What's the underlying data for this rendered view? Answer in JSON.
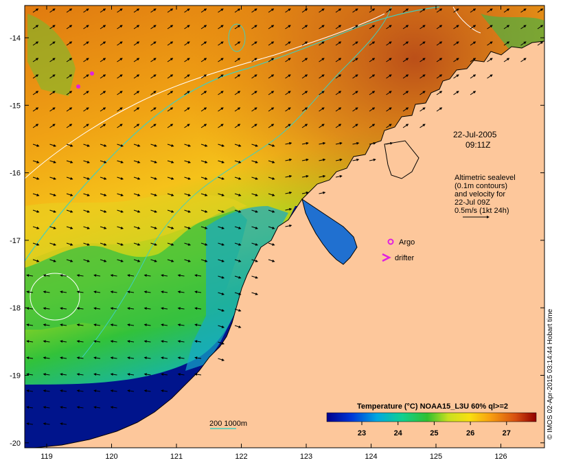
{
  "date": "22-Jul-2005",
  "time": "09:11Z",
  "altimetry_lines": [
    "Altimetric sealevel",
    "(0.1m contours)",
    "and velocity for",
    "22-Jul 09Z",
    "0.5m/s (1kt 24h)"
  ],
  "legend": {
    "argo": "Argo",
    "drifter": "drifter",
    "bathy": "200  1000m"
  },
  "colorbar": {
    "title": "Temperature (°C) NOAA15_L3U 60% ql>=2",
    "ticks": [
      "23",
      "24",
      "25",
      "26",
      "27"
    ]
  },
  "axes": {
    "lon_ticks": [
      "119",
      "120",
      "121",
      "122",
      "123",
      "124",
      "125",
      "126"
    ],
    "lat_ticks": [
      "-14",
      "-15",
      "-16",
      "-17",
      "-18",
      "-19",
      "-20"
    ]
  },
  "credit": "© IMOS 02-Apr-2015 03:14:44 Hobart time",
  "colors": {
    "land": "#fdc79b",
    "warm": "#c0501a",
    "cool": "#00148c",
    "mid": "#2fc447",
    "contour": "#3fd0c0"
  }
}
